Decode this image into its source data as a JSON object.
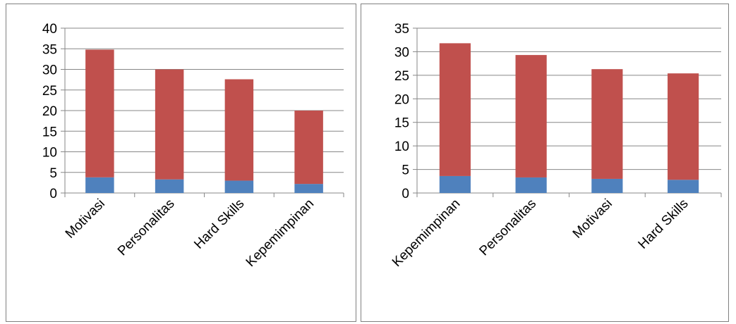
{
  "chart_data": [
    {
      "type": "bar",
      "stacked": true,
      "categories": [
        "Motivasi",
        "Personalitas",
        "Hard Skills",
        "Kepemimpinan"
      ],
      "series": [
        {
          "values": [
            3.8,
            3.3,
            3.0,
            2.2
          ],
          "color": "#4F81BD"
        },
        {
          "values": [
            31.0,
            26.7,
            24.6,
            17.8
          ],
          "color": "#C0504D"
        }
      ],
      "yticks": [
        "0",
        "5",
        "10",
        "15",
        "20",
        "25",
        "30",
        "35",
        "40"
      ],
      "ylim": [
        0,
        40
      ],
      "grid": true,
      "legend": "none"
    },
    {
      "type": "bar",
      "stacked": true,
      "categories": [
        "Kepemimpinan",
        "Personalitas",
        "Motivasi",
        "Hard Skills"
      ],
      "series": [
        {
          "values": [
            3.6,
            3.3,
            3.0,
            2.8
          ],
          "color": "#4F81BD"
        },
        {
          "values": [
            28.2,
            26.0,
            23.3,
            22.6
          ],
          "color": "#C0504D"
        }
      ],
      "yticks": [
        "0",
        "5",
        "10",
        "15",
        "20",
        "25",
        "30",
        "35"
      ],
      "ylim": [
        0,
        35
      ],
      "grid": true,
      "legend": "none"
    }
  ]
}
